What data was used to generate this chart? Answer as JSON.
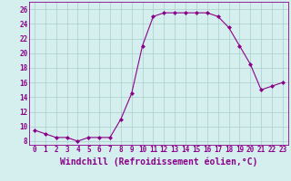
{
  "x": [
    0,
    1,
    2,
    3,
    4,
    5,
    6,
    7,
    8,
    9,
    10,
    11,
    12,
    13,
    14,
    15,
    16,
    17,
    18,
    19,
    20,
    21,
    22,
    23
  ],
  "y": [
    9.5,
    9.0,
    8.5,
    8.5,
    8.0,
    8.5,
    8.5,
    8.5,
    11.0,
    14.5,
    21.0,
    25.0,
    25.5,
    25.5,
    25.5,
    25.5,
    25.5,
    25.0,
    23.5,
    21.0,
    18.5,
    15.0,
    15.5,
    16.0
  ],
  "line_color": "#8B008B",
  "marker": "D",
  "marker_size": 2.0,
  "background_color": "#d5eeee",
  "grid_color": "#aacccc",
  "xlabel": "Windchill (Refroidissement éolien,°C)",
  "xlabel_fontsize": 7,
  "ylim": [
    7.5,
    27
  ],
  "xlim": [
    -0.5,
    23.5
  ],
  "yticks": [
    8,
    10,
    12,
    14,
    16,
    18,
    20,
    22,
    24,
    26
  ],
  "xticks": [
    0,
    1,
    2,
    3,
    4,
    5,
    6,
    7,
    8,
    9,
    10,
    11,
    12,
    13,
    14,
    15,
    16,
    17,
    18,
    19,
    20,
    21,
    22,
    23
  ],
  "tick_fontsize": 5.5,
  "line_color_hex": "#8B008B",
  "grid_linewidth": 0.5
}
